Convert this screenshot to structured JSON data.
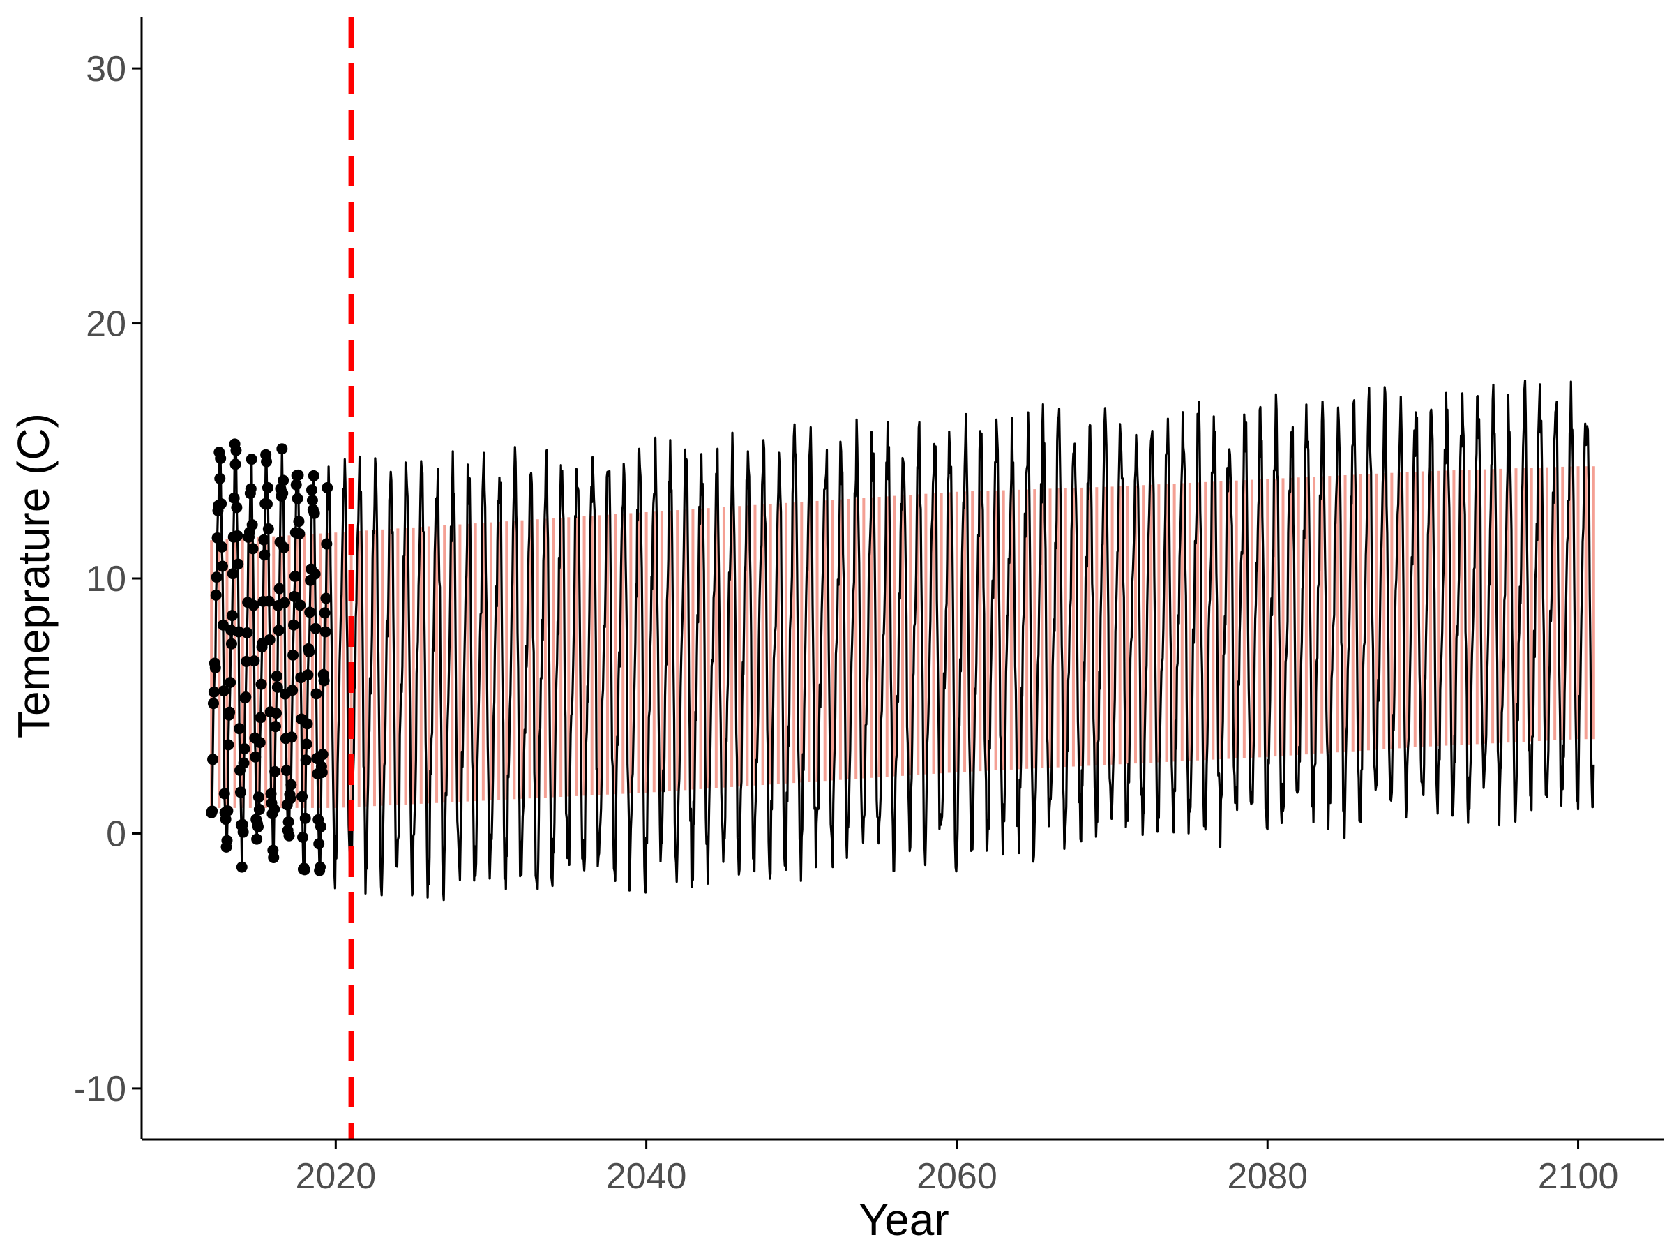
{
  "chart_data": {
    "type": "line",
    "title": "",
    "xlabel": "Year",
    "ylabel": "Temeprature (C)",
    "xlim": [
      2007.5,
      2105.5
    ],
    "ylim": [
      -12,
      32
    ],
    "x_ticks": [
      2020,
      2040,
      2060,
      2080,
      2100
    ],
    "x_tick_labels": [
      "2020",
      "2040",
      "2060",
      "2080",
      "2100"
    ],
    "y_ticks": [
      -10,
      0,
      10,
      20,
      30
    ],
    "y_tick_labels": [
      "-10",
      "0",
      "10",
      "20",
      "30"
    ],
    "grid": false,
    "legend": "none",
    "vline": {
      "x": 2021,
      "color": "#ff0000",
      "style": "dashed"
    },
    "observed_start": 2012,
    "observed_end": 2019.5,
    "observed_points_per_year": 12,
    "projection_end": 2101,
    "trend_annual": {
      "years": [
        2012,
        2020,
        2030,
        2040,
        2050,
        2060,
        2070,
        2080,
        2090,
        2100
      ],
      "mean": [
        6.2,
        6.8,
        7.0,
        7.4,
        7.9,
        8.3,
        8.6,
        9.0,
        9.4,
        9.6
      ],
      "summer_peak": [
        15.5,
        14.5,
        14.8,
        15.3,
        15.7,
        16.3,
        16.5,
        16.8,
        17.3,
        17.6
      ],
      "winter_trough": [
        -0.8,
        -2.0,
        -2.5,
        -2.2,
        -1.6,
        -1.2,
        -0.5,
        0.0,
        0.4,
        0.8
      ]
    },
    "band_annual": {
      "upper": [
        11.5,
        11.8,
        12.2,
        12.6,
        13.0,
        13.4,
        13.6,
        13.9,
        14.2,
        14.4
      ],
      "lower": [
        1.0,
        1.0,
        1.3,
        1.6,
        2.0,
        2.4,
        2.7,
        3.0,
        3.4,
        3.7
      ]
    },
    "series": [
      {
        "color": "#000000",
        "style": "line"
      },
      {
        "color": "#f08070",
        "style": "band"
      },
      {
        "color": "#000000",
        "style": "points"
      }
    ],
    "colors": {
      "line": "#000000",
      "band": "#f08070",
      "vline": "#ff0000",
      "axis": "#000000"
    }
  }
}
